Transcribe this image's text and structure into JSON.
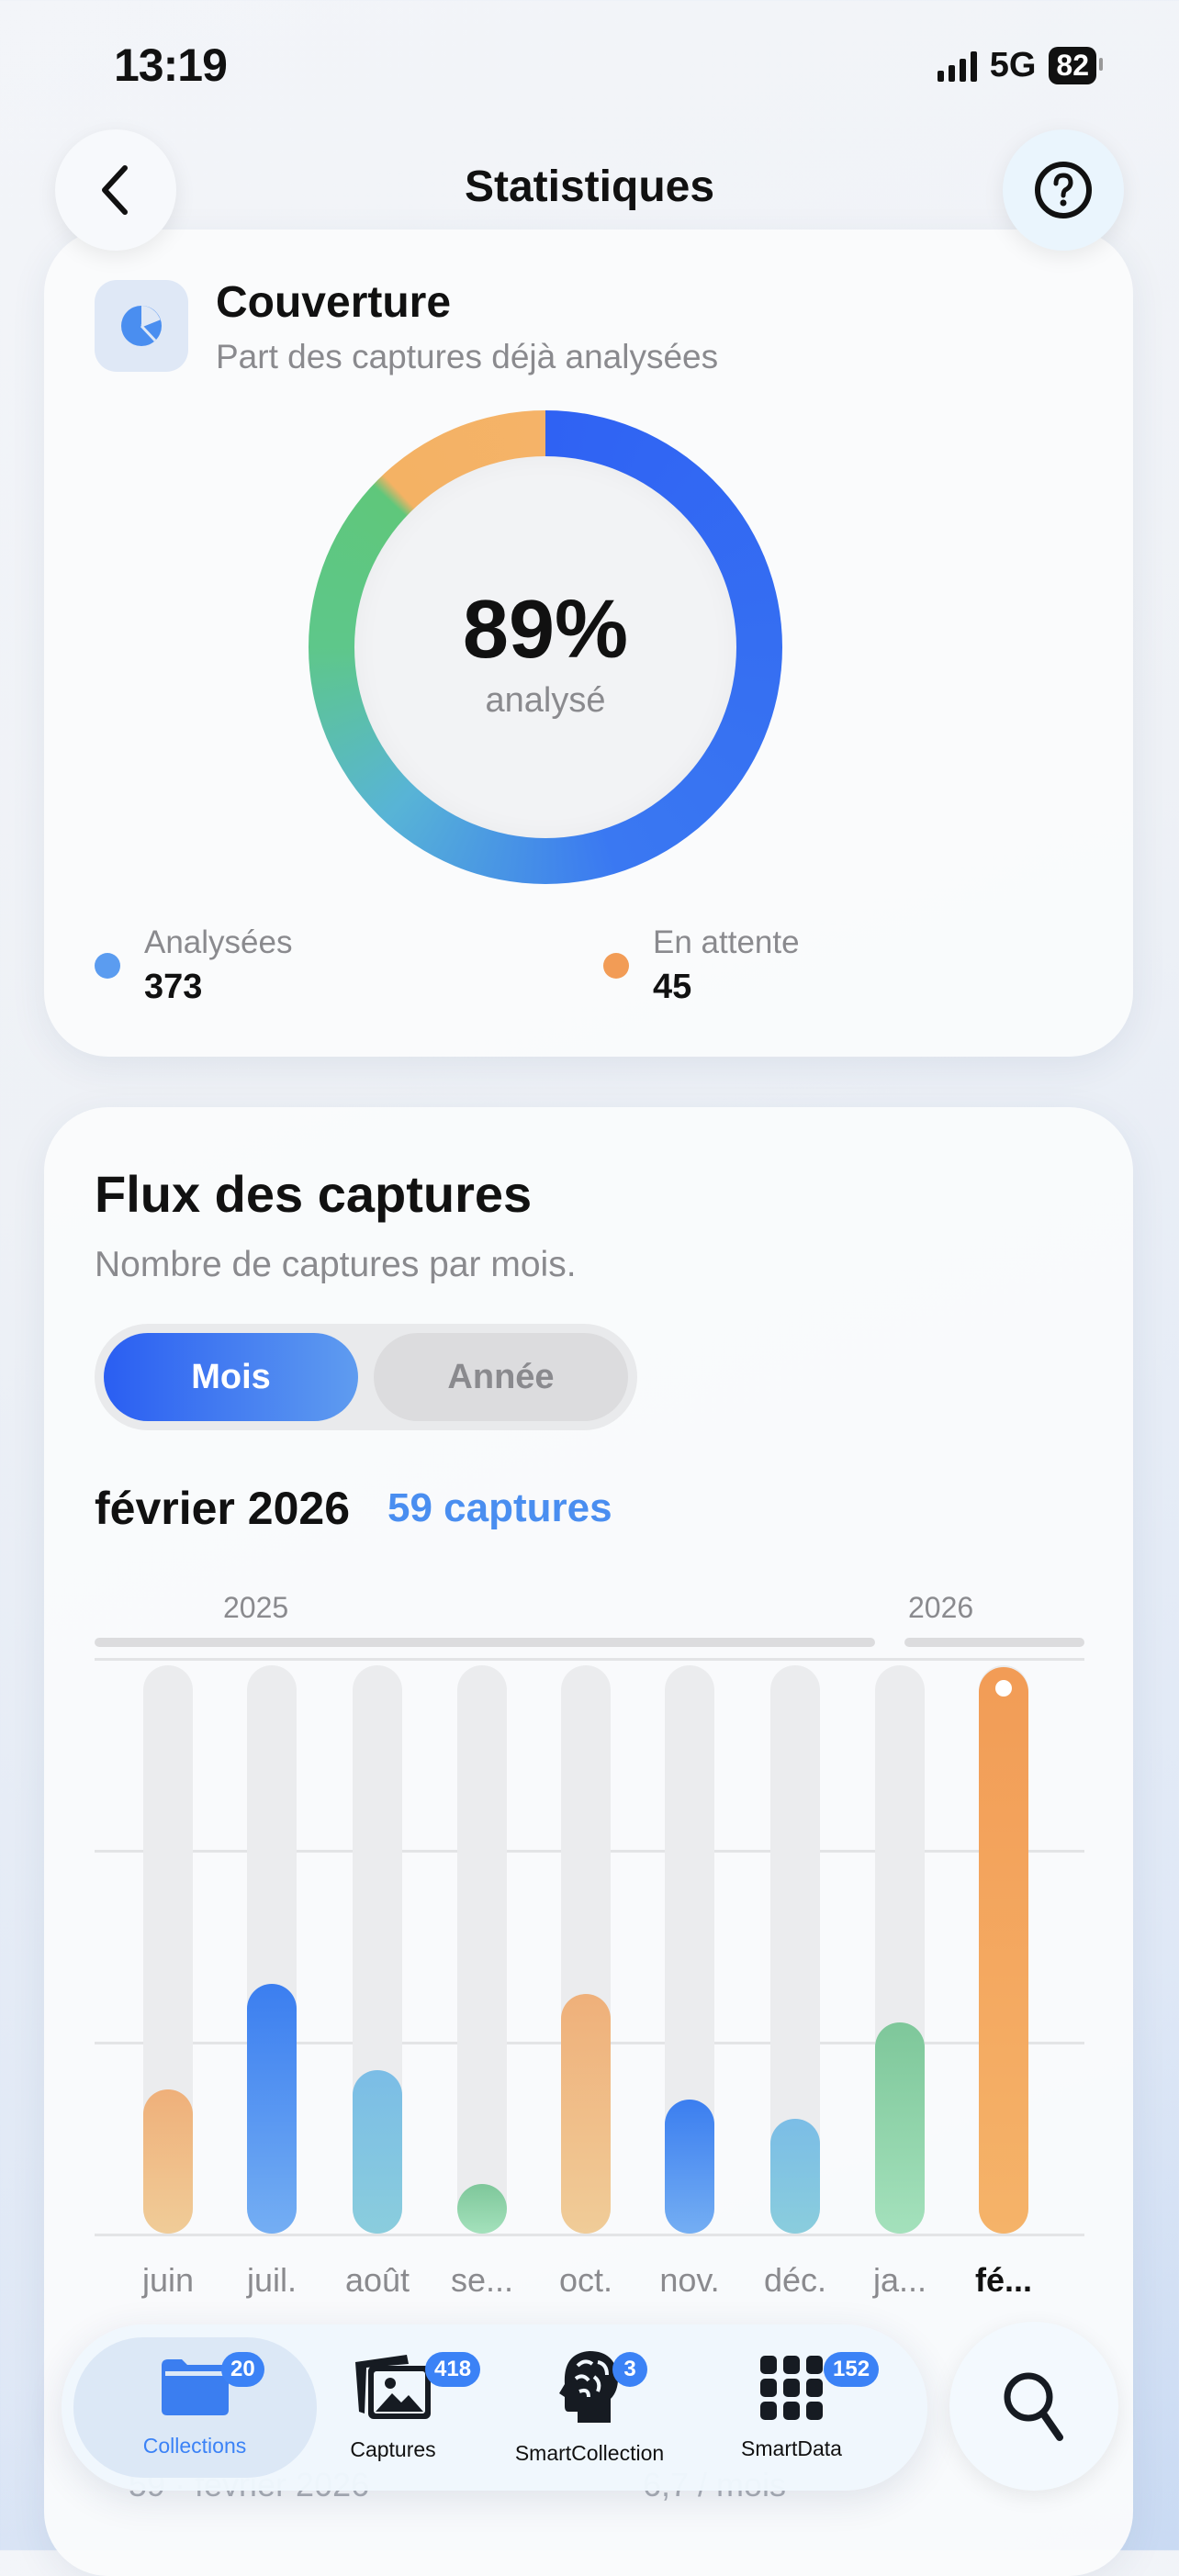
{
  "status": {
    "time": "13:19",
    "network": "5G",
    "battery": "82"
  },
  "nav": {
    "title": "Statistiques",
    "back_icon": "chevron-left-icon",
    "help_icon": "question-circle-icon"
  },
  "coverage": {
    "title": "Couverture",
    "subtitle": "Part des captures déjà analysées",
    "percent_label": "89%",
    "percent_value": 89,
    "center_label": "analysé",
    "analysed": {
      "label": "Analysées",
      "value": "373",
      "color": "#5b9cf0"
    },
    "pending": {
      "label": "En attente",
      "value": "45",
      "color": "#f29c56"
    }
  },
  "flux": {
    "title": "Flux des captures",
    "subtitle": "Nombre de captures par mois.",
    "segments": [
      "Mois",
      "Année"
    ],
    "selected_segment": "Mois",
    "selected_period": "février 2026",
    "selected_count": "59 captures",
    "years": [
      "2025",
      "2026"
    ]
  },
  "chart_data": {
    "type": "bar",
    "categories": [
      "juin",
      "juil.",
      "août",
      "se...",
      "oct.",
      "nov.",
      "déc.",
      "ja...",
      "fé..."
    ],
    "values": [
      15,
      26,
      17,
      5,
      25,
      14,
      12,
      22,
      59
    ],
    "ylim": [
      0,
      60
    ],
    "grid": true,
    "selected": "fé...",
    "colors": [
      "orange",
      "blue",
      "teal",
      "green",
      "orange",
      "blue",
      "teal",
      "green",
      "orange-strong"
    ]
  },
  "behind": {
    "left": "59 · février 2026",
    "right": "6,7 / mois"
  },
  "tabbar": {
    "tabs": [
      {
        "label": "Collections",
        "badge": "20",
        "icon": "folder-icon"
      },
      {
        "label": "Captures",
        "badge": "418",
        "icon": "photos-icon"
      },
      {
        "label": "SmartCollection",
        "badge": "3",
        "icon": "brain-head-icon"
      },
      {
        "label": "SmartData",
        "badge": "152",
        "icon": "grid-icon"
      }
    ],
    "selected": "Collections",
    "search_icon": "search-icon"
  },
  "accent": "#2f6af5"
}
